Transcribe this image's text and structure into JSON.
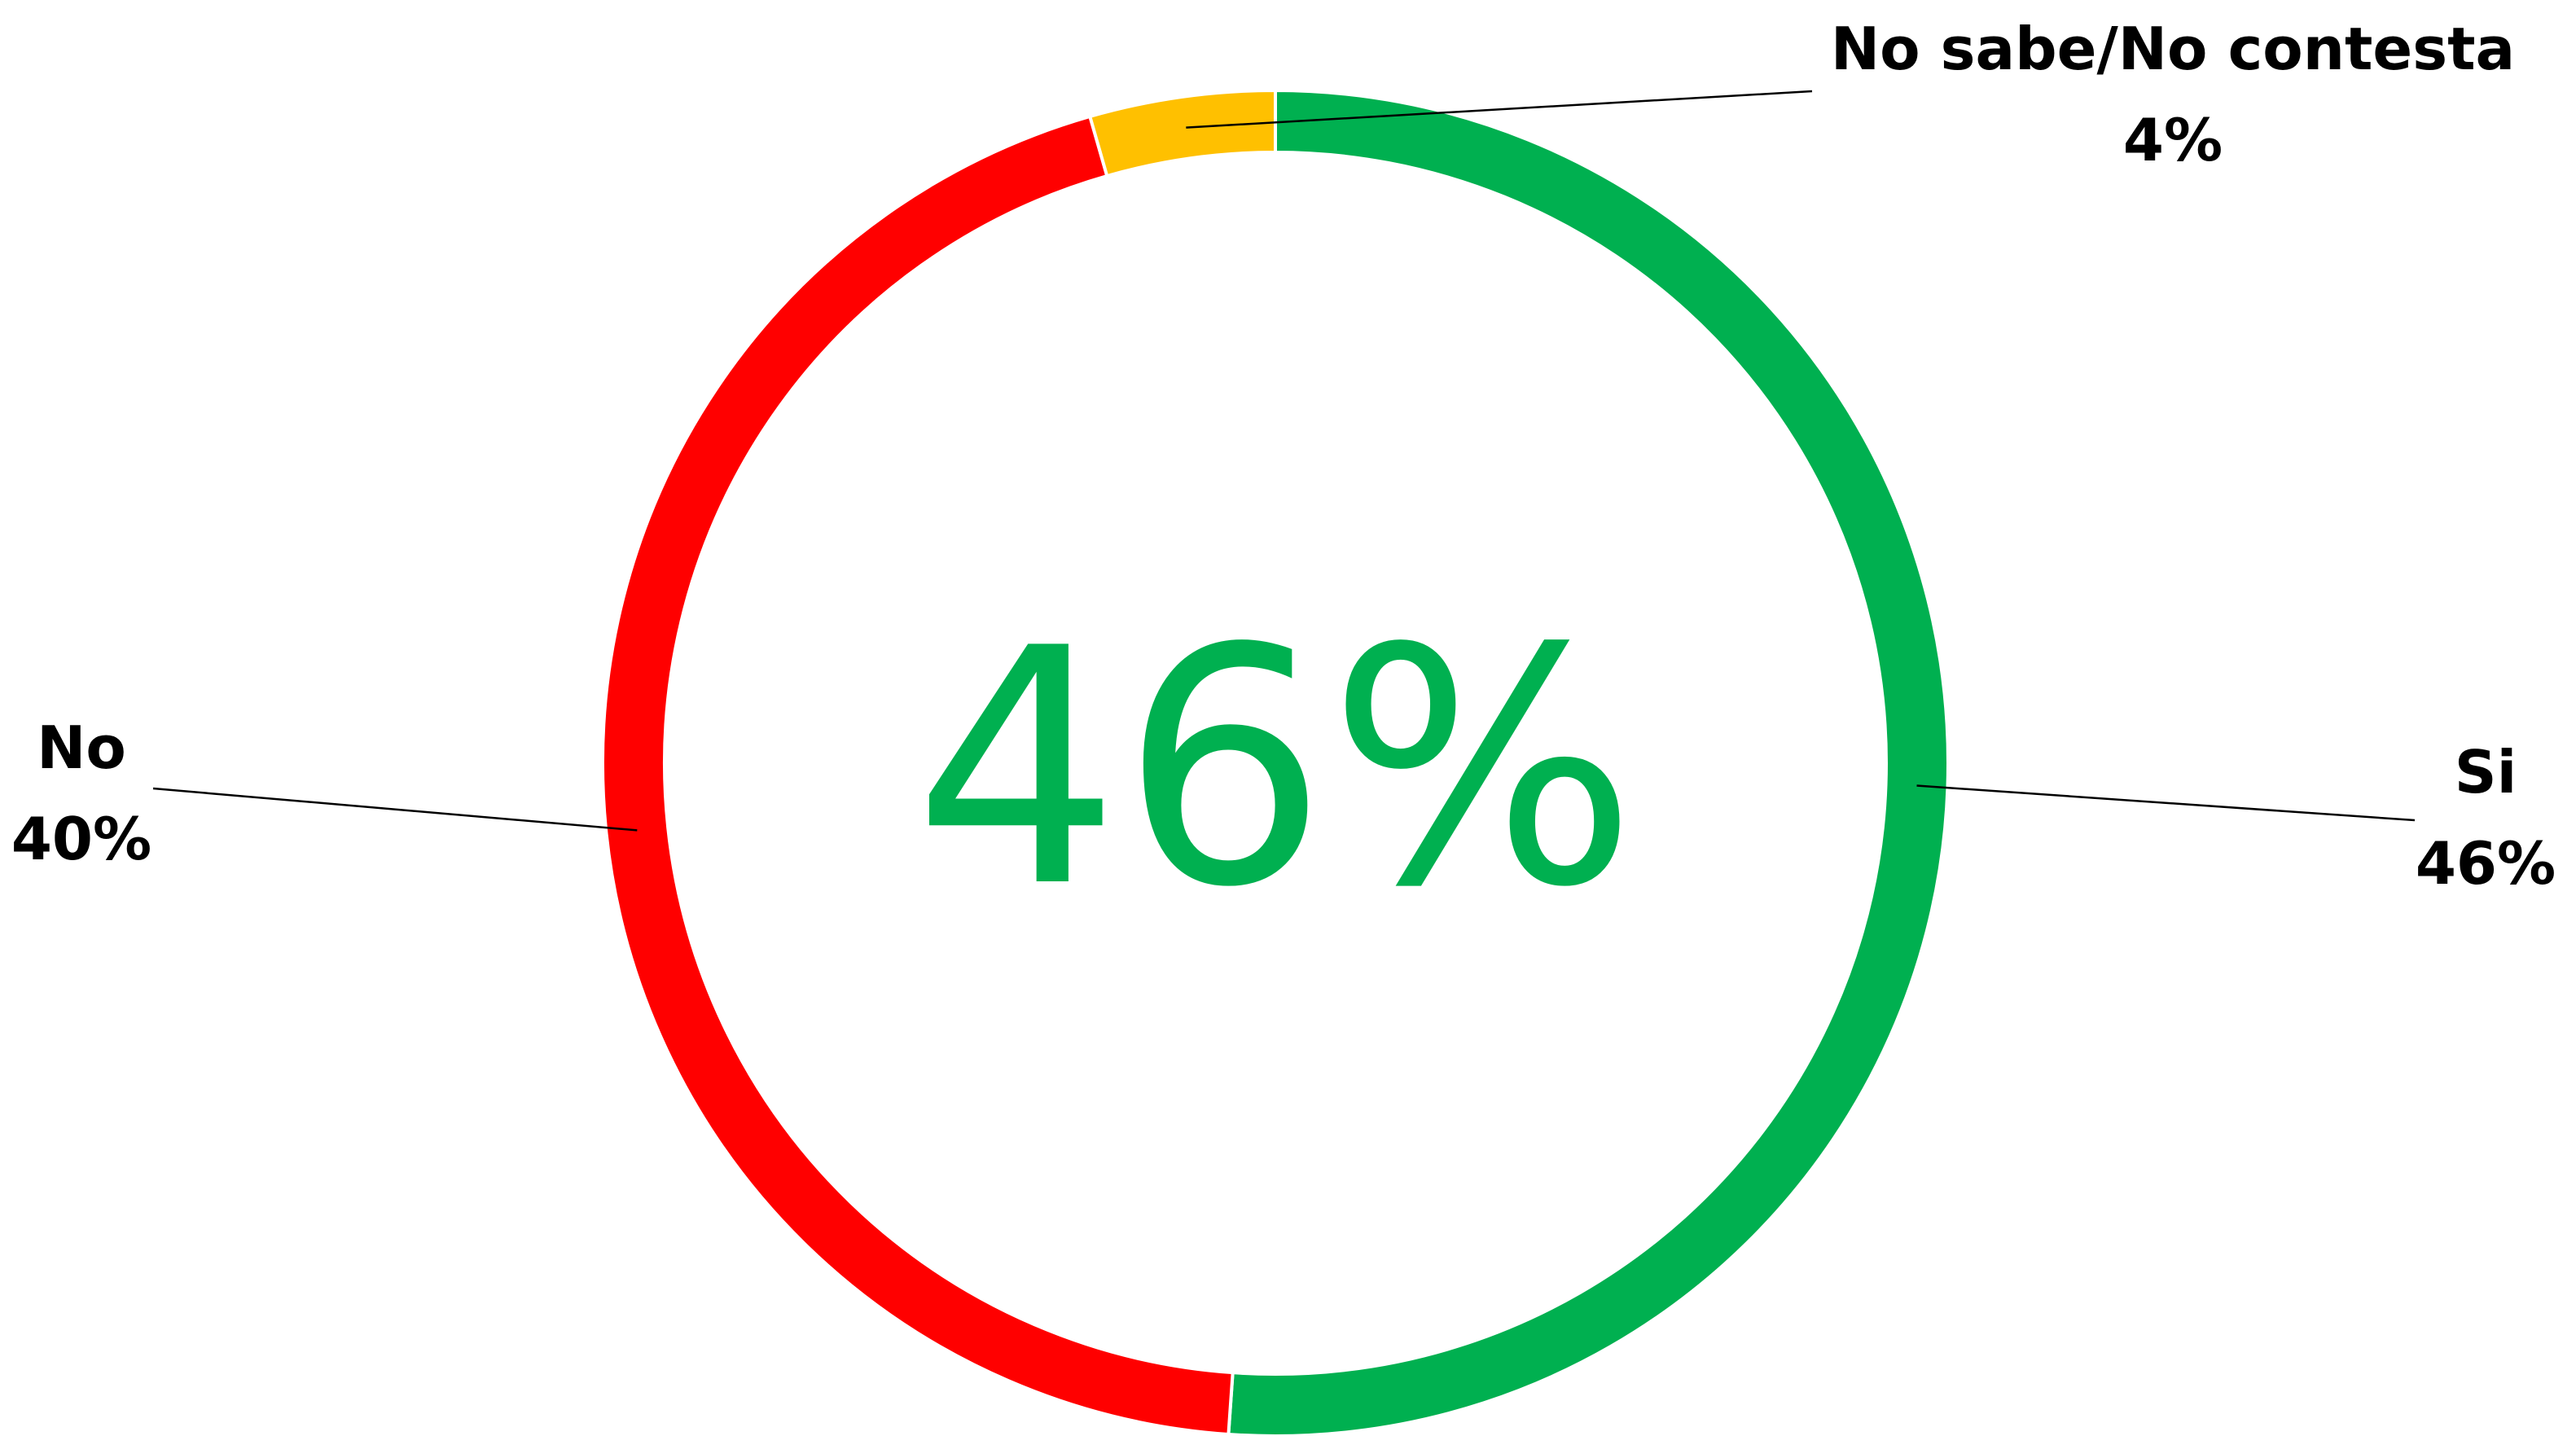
{
  "chart_data": {
    "type": "pie",
    "variant": "donut",
    "categories": [
      "Si",
      "No",
      "No sabe/No contesta"
    ],
    "values": [
      46,
      40,
      4
    ],
    "value_labels": [
      "46%",
      "40%",
      "4%"
    ],
    "colors": [
      "#00B050",
      "#FF0000",
      "#FFC000"
    ],
    "center_label": "46%",
    "center_label_color": "#00B050",
    "start_angle_deg": 0,
    "direction": "clockwise",
    "legend": "none"
  }
}
